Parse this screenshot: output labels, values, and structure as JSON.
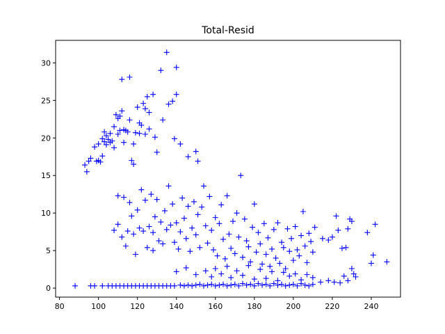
{
  "chart_data": {
    "type": "scatter",
    "title": "Total-Resid",
    "xlabel": "",
    "ylabel": "",
    "xlim": [
      78,
      255
    ],
    "ylim": [
      -1.2,
      33
    ],
    "x_ticks": [
      80,
      100,
      120,
      140,
      160,
      180,
      200,
      220,
      240
    ],
    "y_ticks": [
      0,
      5,
      10,
      15,
      20,
      25,
      30
    ],
    "grid": false,
    "marker": "+",
    "color": "#0000ff",
    "points": [
      [
        88,
        0.3
      ],
      [
        96,
        0.3
      ],
      [
        98,
        0.3
      ],
      [
        102,
        0.3
      ],
      [
        105,
        0.3
      ],
      [
        107,
        0.3
      ],
      [
        109,
        0.3
      ],
      [
        111,
        0.3
      ],
      [
        113,
        0.3
      ],
      [
        115,
        0.3
      ],
      [
        117,
        0.3
      ],
      [
        119,
        0.3
      ],
      [
        121,
        0.3
      ],
      [
        123,
        0.3
      ],
      [
        125,
        0.3
      ],
      [
        127,
        0.3
      ],
      [
        129,
        0.3
      ],
      [
        131,
        0.3
      ],
      [
        133,
        0.3
      ],
      [
        135,
        0.3
      ],
      [
        137,
        0.3
      ],
      [
        139,
        0.3
      ],
      [
        142,
        0.4
      ],
      [
        144,
        0.3
      ],
      [
        146,
        0.4
      ],
      [
        148,
        0.3
      ],
      [
        150,
        0.4
      ],
      [
        152,
        0.5
      ],
      [
        154,
        0.3
      ],
      [
        156,
        0.4
      ],
      [
        158,
        0.5
      ],
      [
        160,
        0.3
      ],
      [
        162,
        0.4
      ],
      [
        164,
        0.5
      ],
      [
        166,
        0.3
      ],
      [
        168,
        0.4
      ],
      [
        170,
        0.5
      ],
      [
        172,
        0.3
      ],
      [
        174,
        0.6
      ],
      [
        176,
        0.4
      ],
      [
        178,
        0.5
      ],
      [
        180,
        0.3
      ],
      [
        182,
        0.6
      ],
      [
        184,
        0.4
      ],
      [
        186,
        0.5
      ],
      [
        188,
        0.3
      ],
      [
        190,
        0.6
      ],
      [
        192,
        0.4
      ],
      [
        194,
        0.5
      ],
      [
        196,
        0.3
      ],
      [
        198,
        0.4
      ],
      [
        200,
        0.5
      ],
      [
        202,
        0.3
      ],
      [
        204,
        0.6
      ],
      [
        206,
        0.4
      ],
      [
        208,
        0.3
      ],
      [
        210,
        0.5
      ],
      [
        93,
        16.4
      ],
      [
        94,
        15.5
      ],
      [
        95,
        16.9
      ],
      [
        96,
        17.3
      ],
      [
        98,
        18.8
      ],
      [
        99,
        16.9
      ],
      [
        100,
        17.0
      ],
      [
        100,
        19.2
      ],
      [
        101,
        16.8
      ],
      [
        102,
        17.6
      ],
      [
        102,
        19.9
      ],
      [
        103,
        19.5
      ],
      [
        103,
        20.8
      ],
      [
        104,
        19.1
      ],
      [
        104,
        20.3
      ],
      [
        105,
        19.8
      ],
      [
        106,
        19.4
      ],
      [
        106,
        20.6
      ],
      [
        107,
        19.6
      ],
      [
        108,
        18.7
      ],
      [
        108,
        21.5
      ],
      [
        109,
        23.1
      ],
      [
        110,
        22.6
      ],
      [
        110,
        20.5
      ],
      [
        111,
        21.0
      ],
      [
        111,
        22.9
      ],
      [
        112,
        27.8
      ],
      [
        112,
        23.6
      ],
      [
        113,
        21.1
      ],
      [
        113,
        19.4
      ],
      [
        114,
        21.0
      ],
      [
        115,
        20.8
      ],
      [
        116,
        22.4
      ],
      [
        116,
        28.1
      ],
      [
        117,
        17.0
      ],
      [
        118,
        16.5
      ],
      [
        118,
        19.2
      ],
      [
        119,
        20.7
      ],
      [
        120,
        24.1
      ],
      [
        121,
        22.0
      ],
      [
        121,
        20.6
      ],
      [
        122,
        21.7
      ],
      [
        123,
        24.6
      ],
      [
        124,
        23.9
      ],
      [
        124,
        20.5
      ],
      [
        125,
        25.5
      ],
      [
        126,
        23.4
      ],
      [
        126,
        21.2
      ],
      [
        128,
        25.8
      ],
      [
        129,
        20.1
      ],
      [
        130,
        18.1
      ],
      [
        132,
        29.0
      ],
      [
        133,
        22.4
      ],
      [
        135,
        31.4
      ],
      [
        136,
        24.5
      ],
      [
        138,
        24.9
      ],
      [
        139,
        19.9
      ],
      [
        140,
        29.4
      ],
      [
        140,
        25.8
      ],
      [
        142,
        19.2
      ],
      [
        146,
        17.5
      ],
      [
        150,
        18.2
      ],
      [
        151,
        16.9
      ],
      [
        108,
        7.7
      ],
      [
        110,
        8.5
      ],
      [
        110,
        12.3
      ],
      [
        112,
        6.8
      ],
      [
        113,
        12.1
      ],
      [
        114,
        5.6
      ],
      [
        115,
        7.6
      ],
      [
        116,
        11.4
      ],
      [
        117,
        9.6
      ],
      [
        118,
        7.2
      ],
      [
        119,
        4.5
      ],
      [
        120,
        10.4
      ],
      [
        121,
        8.0
      ],
      [
        122,
        13.1
      ],
      [
        123,
        7.6
      ],
      [
        124,
        11.7
      ],
      [
        125,
        5.4
      ],
      [
        126,
        8.2
      ],
      [
        127,
        12.5
      ],
      [
        128,
        7.4
      ],
      [
        128,
        5.0
      ],
      [
        129,
        9.5
      ],
      [
        130,
        11.8
      ],
      [
        131,
        6.3
      ],
      [
        132,
        8.8
      ],
      [
        133,
        5.9
      ],
      [
        134,
        10.3
      ],
      [
        135,
        7.8
      ],
      [
        136,
        13.6
      ],
      [
        137,
        8.4
      ],
      [
        138,
        11.2
      ],
      [
        139,
        6.1
      ],
      [
        140,
        8.7
      ],
      [
        141,
        5.2
      ],
      [
        142,
        7.5
      ],
      [
        143,
        12.0
      ],
      [
        144,
        9.3
      ],
      [
        145,
        6.6
      ],
      [
        146,
        10.9
      ],
      [
        147,
        4.9
      ],
      [
        148,
        8.0
      ],
      [
        149,
        11.5
      ],
      [
        150,
        7.1
      ],
      [
        151,
        9.8
      ],
      [
        152,
        5.4
      ],
      [
        153,
        10.8
      ],
      [
        154,
        13.6
      ],
      [
        155,
        8.3
      ],
      [
        156,
        6.0
      ],
      [
        157,
        12.2
      ],
      [
        158,
        7.7
      ],
      [
        159,
        5.1
      ],
      [
        160,
        9.4
      ],
      [
        161,
        4.3
      ],
      [
        162,
        8.6
      ],
      [
        163,
        11.1
      ],
      [
        164,
        6.5
      ],
      [
        165,
        3.9
      ],
      [
        166,
        12.3
      ],
      [
        167,
        7.2
      ],
      [
        168,
        5.3
      ],
      [
        169,
        8.9
      ],
      [
        170,
        4.6
      ],
      [
        171,
        10.0
      ],
      [
        172,
        6.8
      ],
      [
        173,
        15.0
      ],
      [
        174,
        4.1
      ],
      [
        175,
        9.2
      ],
      [
        176,
        6.3
      ],
      [
        177,
        5.5
      ],
      [
        178,
        3.5
      ],
      [
        179,
        8.1
      ],
      [
        180,
        11.2
      ],
      [
        181,
        4.8
      ],
      [
        182,
        7.4
      ],
      [
        183,
        5.9
      ],
      [
        184,
        3.2
      ],
      [
        185,
        8.6
      ],
      [
        186,
        4.5
      ],
      [
        187,
        6.7
      ],
      [
        188,
        2.9
      ],
      [
        189,
        5.2
      ],
      [
        190,
        7.8
      ],
      [
        191,
        4.0
      ],
      [
        192,
        8.7
      ],
      [
        193,
        3.3
      ],
      [
        194,
        6.1
      ],
      [
        195,
        5.4
      ],
      [
        196,
        2.6
      ],
      [
        197,
        7.9
      ],
      [
        198,
        4.9
      ],
      [
        199,
        6.6
      ],
      [
        200,
        3.7
      ],
      [
        201,
        8.2
      ],
      [
        202,
        5.1
      ],
      [
        203,
        4.3
      ],
      [
        204,
        7.0
      ],
      [
        205,
        10.2
      ],
      [
        206,
        5.6
      ],
      [
        207,
        3.4
      ],
      [
        208,
        7.3
      ],
      [
        209,
        6.2
      ],
      [
        210,
        4.8
      ],
      [
        211,
        8.1
      ],
      [
        215,
        6.6
      ],
      [
        218,
        6.4
      ],
      [
        220,
        6.8
      ],
      [
        222,
        9.6
      ],
      [
        223,
        7.7
      ],
      [
        225,
        5.3
      ],
      [
        227,
        5.4
      ],
      [
        228,
        7.9
      ],
      [
        229,
        9.2
      ],
      [
        230,
        8.9
      ],
      [
        238,
        7.4
      ],
      [
        242,
        8.5
      ],
      [
        140,
        2.2
      ],
      [
        145,
        2.7
      ],
      [
        150,
        1.8
      ],
      [
        155,
        2.3
      ],
      [
        158,
        1.5
      ],
      [
        160,
        2.6
      ],
      [
        163,
        1.9
      ],
      [
        166,
        2.9
      ],
      [
        168,
        1.4
      ],
      [
        171,
        2.3
      ],
      [
        174,
        1.7
      ],
      [
        177,
        3.0
      ],
      [
        180,
        1.2
      ],
      [
        183,
        2.5
      ],
      [
        186,
        1.3
      ],
      [
        189,
        2.2
      ],
      [
        192,
        1.0
      ],
      [
        195,
        2.1
      ],
      [
        198,
        1.6
      ],
      [
        201,
        1.9
      ],
      [
        204,
        1.1
      ],
      [
        207,
        1.8
      ],
      [
        210,
        1.4
      ],
      [
        214,
        0.8
      ],
      [
        218,
        1.0
      ],
      [
        221,
        0.8
      ],
      [
        224,
        0.7
      ],
      [
        226,
        1.6
      ],
      [
        228,
        1.0
      ],
      [
        230,
        2.6
      ],
      [
        231,
        1.9
      ],
      [
        232,
        1.5
      ],
      [
        240,
        3.3
      ],
      [
        241,
        4.4
      ],
      [
        248,
        3.5
      ]
    ]
  }
}
